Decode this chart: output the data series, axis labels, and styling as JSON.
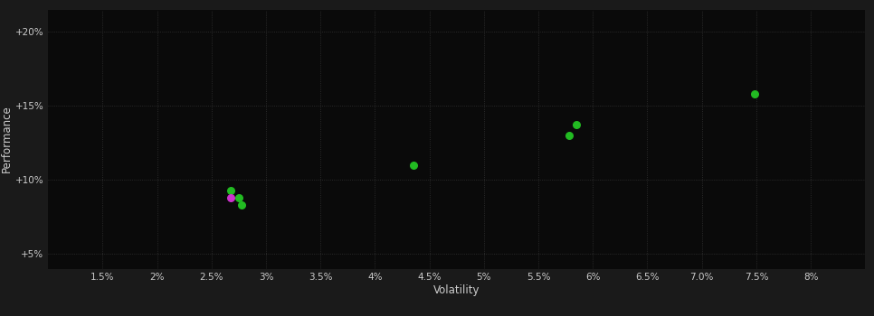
{
  "background_color": "#1a1a1a",
  "plot_bg_color": "#0a0a0a",
  "grid_color": "#333333",
  "grid_linestyle": ":",
  "xlabel": "Volatility",
  "ylabel": "Performance",
  "xlim": [
    0.01,
    0.085
  ],
  "ylim": [
    0.04,
    0.215
  ],
  "xticks": [
    0.015,
    0.02,
    0.025,
    0.03,
    0.035,
    0.04,
    0.045,
    0.05,
    0.055,
    0.06,
    0.065,
    0.07,
    0.075,
    0.08
  ],
  "yticks": [
    0.05,
    0.1,
    0.15,
    0.2
  ],
  "points_green": [
    [
      0.0268,
      0.093
    ],
    [
      0.0275,
      0.088
    ],
    [
      0.0278,
      0.083
    ],
    [
      0.0435,
      0.11
    ],
    [
      0.0585,
      0.137
    ],
    [
      0.0578,
      0.13
    ],
    [
      0.0748,
      0.158
    ]
  ],
  "points_magenta": [
    [
      0.0268,
      0.088
    ]
  ],
  "marker_size": 30,
  "green_color": "#22bb22",
  "magenta_color": "#cc33cc",
  "tick_label_color": "#cccccc",
  "axis_label_color": "#cccccc",
  "tick_fontsize": 7.5,
  "label_fontsize": 8.5
}
